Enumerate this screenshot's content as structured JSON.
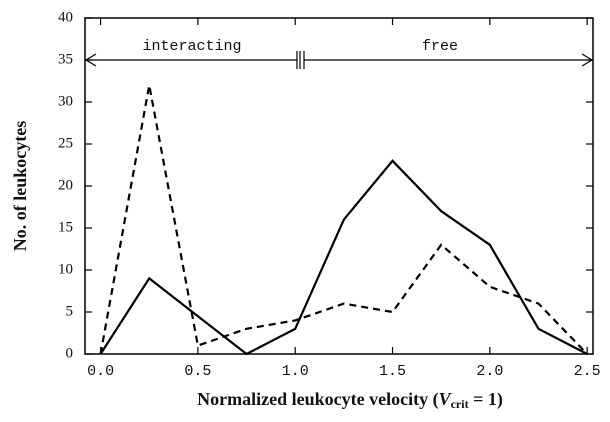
{
  "chart_data": {
    "type": "line",
    "x": [
      0,
      0.25,
      0.5,
      0.75,
      1.0,
      1.25,
      1.5,
      1.75,
      2.0,
      2.25,
      2.5
    ],
    "series": [
      {
        "style": "solid",
        "color": "#000000",
        "values": [
          0,
          9,
          4.5,
          0,
          3,
          16,
          23,
          17,
          13,
          3,
          0
        ]
      },
      {
        "style": "dashed",
        "color": "#000000",
        "values": [
          0,
          32,
          1,
          3,
          4,
          6,
          5,
          13,
          8,
          6,
          0
        ]
      }
    ],
    "xlim": [
      -0.08,
      2.53
    ],
    "ylim": [
      0,
      40
    ],
    "xticks": [
      {
        "value": 0,
        "label": "0.0"
      },
      0.5,
      {
        "value": 1,
        "label": "1.0"
      },
      1.5,
      {
        "value": 2,
        "label": "2.0"
      },
      2.5
    ],
    "yticks": [
      0,
      5,
      10,
      15,
      20,
      25,
      30,
      35,
      40
    ],
    "ylabel": "No. of leukocytes",
    "xlabel_parts": [
      "Normalized leukocyte velocity (",
      "V",
      "crit",
      " = 1)"
    ],
    "annotations": [
      "interacting",
      "free"
    ]
  }
}
